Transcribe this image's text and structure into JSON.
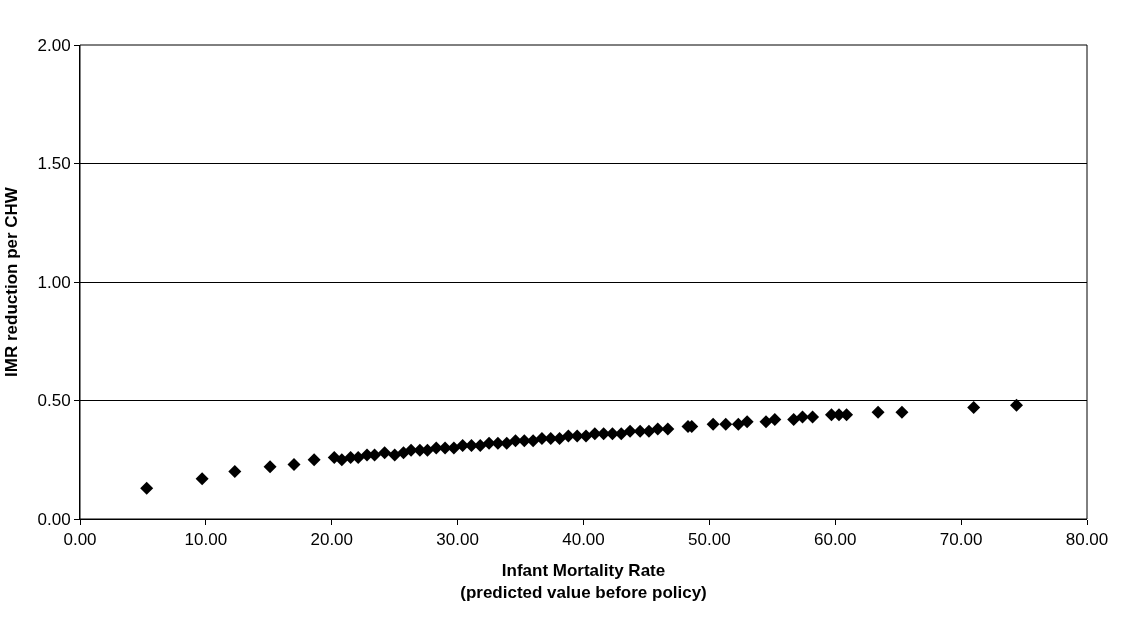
{
  "chart_data": {
    "type": "scatter",
    "xlabel": "Infant Mortality Rate\n(predicted value before policy)",
    "ylabel": "IMR reduction per CHW",
    "x": [
      5.3,
      9.7,
      12.3,
      15.1,
      17.0,
      18.6,
      20.2,
      20.8,
      21.5,
      22.1,
      22.8,
      23.4,
      24.2,
      25.0,
      25.7,
      26.3,
      27.0,
      27.6,
      28.3,
      29.0,
      29.7,
      30.4,
      31.1,
      31.8,
      32.5,
      33.2,
      33.9,
      34.6,
      35.3,
      36.0,
      36.7,
      37.4,
      38.1,
      38.8,
      39.5,
      40.2,
      40.9,
      41.6,
      42.3,
      43.0,
      43.7,
      44.5,
      45.2,
      45.9,
      46.7,
      48.3,
      48.6,
      50.3,
      51.3,
      52.3,
      53.0,
      54.5,
      55.2,
      56.7,
      57.4,
      58.2,
      59.7,
      60.3,
      60.9,
      63.4,
      65.3,
      71.0,
      74.4
    ],
    "values": [
      0.13,
      0.17,
      0.2,
      0.22,
      0.23,
      0.25,
      0.26,
      0.25,
      0.26,
      0.26,
      0.27,
      0.27,
      0.28,
      0.27,
      0.28,
      0.29,
      0.29,
      0.29,
      0.3,
      0.3,
      0.3,
      0.31,
      0.31,
      0.31,
      0.32,
      0.32,
      0.32,
      0.33,
      0.33,
      0.33,
      0.34,
      0.34,
      0.34,
      0.35,
      0.35,
      0.35,
      0.36,
      0.36,
      0.36,
      0.36,
      0.37,
      0.37,
      0.37,
      0.38,
      0.38,
      0.39,
      0.39,
      0.4,
      0.4,
      0.4,
      0.41,
      0.41,
      0.42,
      0.42,
      0.43,
      0.43,
      0.44,
      0.44,
      0.44,
      0.45,
      0.45,
      0.47,
      0.48
    ],
    "color": "#000000",
    "marker": "diamond",
    "xlim": [
      0,
      80
    ],
    "xticks": [
      {
        "value": 0,
        "label": "0.00"
      },
      {
        "value": 10,
        "label": "10.00"
      },
      {
        "value": 20,
        "label": "20.00"
      },
      {
        "value": 30,
        "label": "30.00"
      },
      {
        "value": 40,
        "label": "40.00"
      },
      {
        "value": 50,
        "label": "50.00"
      },
      {
        "value": 60,
        "label": "60.00"
      },
      {
        "value": 70,
        "label": "70.00"
      },
      {
        "value": 80,
        "label": "80.00"
      }
    ],
    "ylim": [
      0,
      2
    ],
    "yticks": [
      {
        "value": 0,
        "label": "0.00"
      },
      {
        "value": 0.5,
        "label": "0.50"
      },
      {
        "value": 1,
        "label": "1.00"
      },
      {
        "value": 1.5,
        "label": "1.50"
      },
      {
        "value": 2,
        "label": "2.00"
      }
    ],
    "grid": "y",
    "legend": false
  }
}
